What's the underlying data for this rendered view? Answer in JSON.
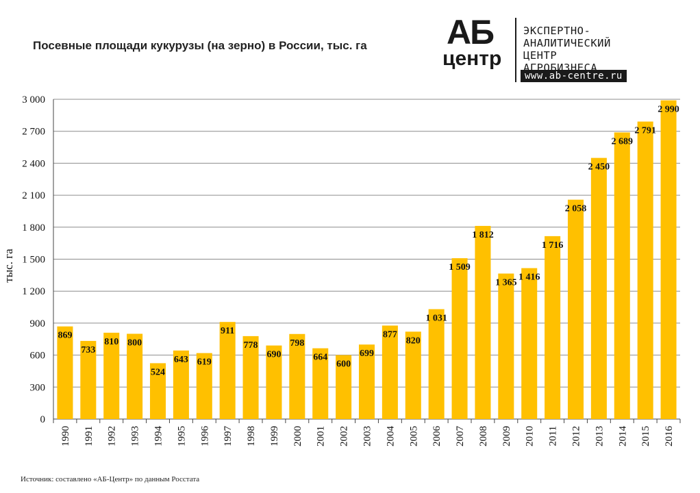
{
  "header": {
    "title": "Посевные площади кукурузы (на зерно) в России, тыс. га"
  },
  "logo": {
    "ab": "АБ",
    "centr": "центр",
    "line1": "ЭКСПЕРТНО-",
    "line2": "АНАЛИТИЧЕСКИЙ",
    "line3": "ЦЕНТР",
    "line4": "АГРОБИЗНЕСА",
    "url": "www.ab-centre.ru"
  },
  "footer": {
    "source": "Источник:  составлено «АБ-Центр»  по данным Росстата"
  },
  "chart_data": {
    "type": "bar",
    "title": "Посевные площади кукурузы (на зерно) в России, тыс. га",
    "xlabel": "",
    "ylabel": "тыс. га",
    "ylim": [
      0,
      3000
    ],
    "yticks": [
      0,
      300,
      600,
      900,
      1200,
      1500,
      1800,
      2100,
      2400,
      2700,
      3000
    ],
    "ytick_labels": [
      "0",
      "300",
      "600",
      "900",
      "1 200",
      "1 500",
      "1 800",
      "2 100",
      "2 400",
      "2 700",
      "3 000"
    ],
    "grid": true,
    "bar_color": "#FFC000",
    "categories": [
      "1990",
      "1991",
      "1992",
      "1993",
      "1994",
      "1995",
      "1996",
      "1997",
      "1998",
      "1999",
      "2000",
      "2001",
      "2002",
      "2003",
      "2004",
      "2005",
      "2006",
      "2007",
      "2008",
      "2009",
      "2010",
      "2011",
      "2012",
      "2013",
      "2014",
      "2015",
      "2016"
    ],
    "values": [
      869,
      733,
      810,
      800,
      524,
      643,
      619,
      911,
      778,
      690,
      798,
      664,
      600,
      699,
      877,
      820,
      1031,
      1509,
      1812,
      1365,
      1416,
      1716,
      2058,
      2450,
      2689,
      2791,
      2990
    ],
    "data_labels": [
      "869",
      "733",
      "810",
      "800",
      "524",
      "643",
      "619",
      "911",
      "778",
      "690",
      "798",
      "664",
      "600",
      "699",
      "877",
      "820",
      "1 031",
      "1 509",
      "1 812",
      "1 365",
      "1 416",
      "1 716",
      "2 058",
      "2 450",
      "2 689",
      "2 791",
      "2 990"
    ]
  }
}
